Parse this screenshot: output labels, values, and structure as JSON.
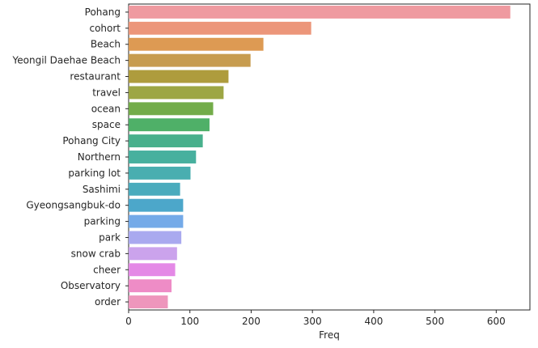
{
  "chart_data": {
    "type": "bar",
    "orientation": "horizontal",
    "xlabel": "Freq",
    "ylabel": "",
    "xlim": [
      0,
      655
    ],
    "xticks": [
      0,
      100,
      200,
      300,
      400,
      500,
      600
    ],
    "grid": false,
    "categories": [
      "Pohang",
      "cohort",
      "Beach",
      "Yeongil Daehae Beach",
      "restaurant",
      "travel",
      "ocean",
      "space",
      "Pohang City",
      "Northern",
      "parking lot",
      "Sashimi",
      "Gyeongsangbuk-do",
      "parking",
      "park",
      "snow crab",
      "cheer",
      "Observatory",
      "order"
    ],
    "values": [
      623,
      298,
      220,
      199,
      163,
      155,
      138,
      132,
      121,
      110,
      101,
      84,
      89,
      89,
      86,
      79,
      76,
      70,
      64
    ],
    "colors": [
      "#ef9aa0",
      "#ec967a",
      "#dd9a53",
      "#c79c4f",
      "#ae9c3d",
      "#9da644",
      "#73ac4a",
      "#4fb068",
      "#48b08c",
      "#47b09e",
      "#49aeb0",
      "#4aabbd",
      "#4ca7ca",
      "#74aae8",
      "#a9a9ef",
      "#cba3ec",
      "#e489e6",
      "#ee8cc6",
      "#ee96bc"
    ]
  }
}
